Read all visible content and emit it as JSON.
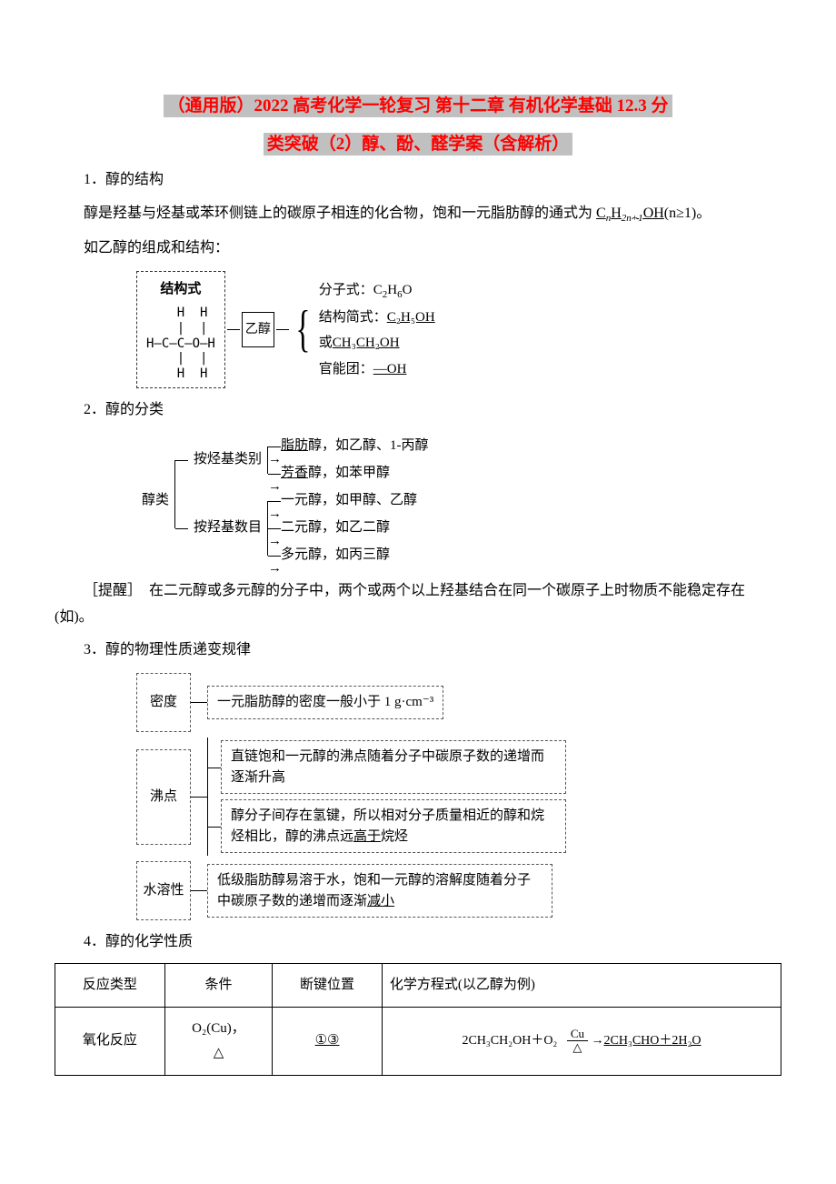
{
  "title_line1": "（通用版）2022 高考化学一轮复习 第十二章 有机化学基础 12.3 分",
  "title_line2": "类突破（2）醇、酚、醛学案（含解析）",
  "section1": "1．醇的结构",
  "p1_a": "醇是羟基与烃基或苯环侧链上的碳原子相连的化合物，饱和一元脂肪醇的通式为",
  "p1_formula_a": "C",
  "p1_formula_sub1": "n",
  "p1_formula_b": "H",
  "p1_formula_sub2": "2n+1",
  "p1_formula_c": "OH",
  "p1_b": "(n≥1)。",
  "p2": "如乙醇的组成和结构：",
  "ethanol_box_label": "结构式",
  "ethanol_struct": "   H  H\n   |  |\nH—C—C—O—H\n   |  |\n   H  H",
  "ethanol_vert": "乙醇",
  "ethanol_r1_a": "分子式：C",
  "ethanol_r1_b": "H",
  "ethanol_r1_c": "O",
  "ethanol_r2_a": "结构简式：",
  "ethanol_r2_u": "C₂H₅OH",
  "ethanol_r2_or": "或",
  "ethanol_r2_u2": "CH₃CH₂OH",
  "ethanol_r3_a": "官能团：",
  "ethanol_r3_u": "—OH",
  "section2": "2．醇的分类",
  "tree_root": "醇类",
  "tree_b1": "按烃基类别",
  "tree_b1_c1_a": "脂肪",
  "tree_b1_c1_b": "醇，如乙醇、1-丙醇",
  "tree_b1_c2_a": "芳香",
  "tree_b1_c2_b": "醇，如苯甲醇",
  "tree_b2": "按羟基数目",
  "tree_b2_c1": "一元醇，如甲醇、乙醇",
  "tree_b2_c2": "二元醇，如乙二醇",
  "tree_b2_c3": "多元醇，如丙三醇",
  "p3": "［提醒］　在二元醇或多元醇的分子中，两个或两个以上羟基结合在同一个碳原子上时物质不能稳定存在(如)。",
  "section3": "3．醇的物理性质递变规律",
  "prop1_label": "密度",
  "prop1_text": "一元脂肪醇的密度一般小于 1 g·cm⁻³",
  "prop2_label": "沸点",
  "prop2_text1": "直链饱和一元醇的沸点随着分子中碳原子数的递增而逐渐升高",
  "prop2_text2_a": "醇分子间存在氢键，所以相对分子质量相近的醇和烷烃相比，醇的沸点远",
  "prop2_text2_u": "高于",
  "prop2_text2_b": "烷烃",
  "prop3_label": "水溶性",
  "prop3_text_a": "低级脂肪醇易溶于水，饱和一元醇的溶解度随着分子中碳原子数的递增而逐渐",
  "prop3_text_u": "减小",
  "section4": "4．醇的化学性质",
  "th1": "反应类型",
  "th2": "条件",
  "th3": "断键位置",
  "th4": "化学方程式(以乙醇为例)",
  "td1": "氧化反应",
  "td2_a": "O₂(Cu)，",
  "td2_b": "△",
  "td3": "①③",
  "eq_a": "2CH₃CH₂OH＋O₂",
  "eq_cu": "Cu",
  "eq_tri": "△",
  "eq_b": "2CH₃CHO＋2H₂O",
  "colors": {
    "title": "#ff0000",
    "highlight_bg": "#c0c0c0",
    "text": "#000000",
    "border": "#000000",
    "dash_border": "#555555",
    "bg": "#ffffff"
  }
}
